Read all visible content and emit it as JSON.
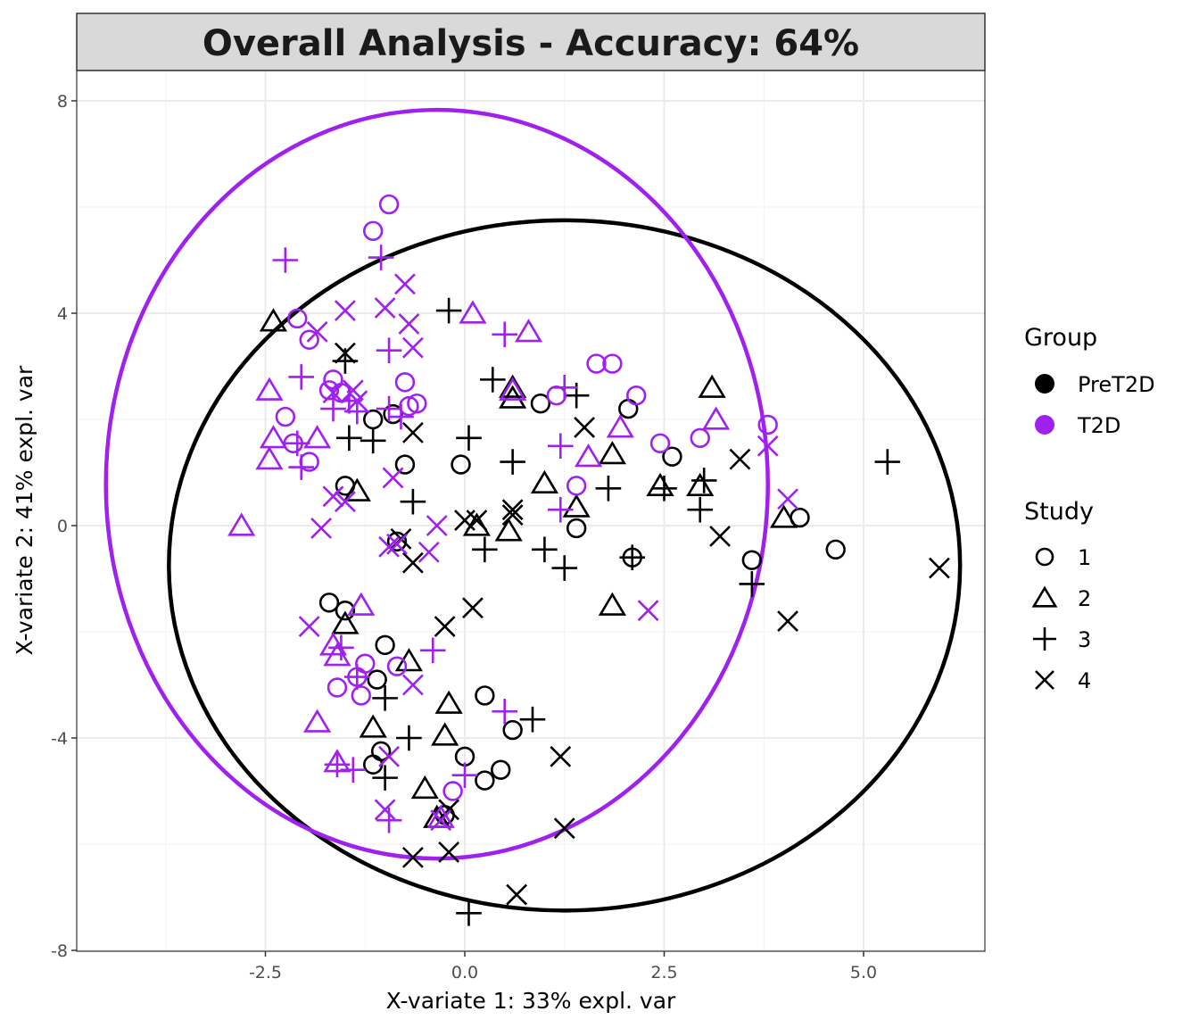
{
  "chart_data": {
    "type": "scatter",
    "title": "Overall Analysis - Accuracy: 64%",
    "xlabel": "X-variate 1: 33% expl. var",
    "ylabel": "X-variate 2: 41% expl. var",
    "xlim": [
      -4.9,
      6.5
    ],
    "ylim": [
      -8,
      8.6
    ],
    "x_ticks": [
      -2.5,
      0.0,
      2.5,
      5.0
    ],
    "x_tick_labels": [
      "-2.5",
      "0.0",
      "2.5",
      "5.0"
    ],
    "y_ticks": [
      -8,
      -4,
      0,
      4,
      8
    ],
    "y_tick_labels": [
      "-8",
      "-4",
      "0",
      "4",
      "8"
    ],
    "grid": true,
    "colors": {
      "PreT2D": "#000000",
      "T2D": "#a020f0"
    },
    "legend": {
      "group_title": "Group",
      "groups": [
        "PreT2D",
        "T2D"
      ],
      "study_title": "Study",
      "studies": [
        "1",
        "2",
        "3",
        "4"
      ]
    },
    "ellipses": [
      {
        "group": "PreT2D",
        "center": [
          1.25,
          -0.75
        ],
        "rx": 4.96,
        "ry": 6.5
      },
      {
        "group": "T2D",
        "center": [
          -0.35,
          0.78
        ],
        "rx": 4.15,
        "ry": 7.05
      }
    ],
    "series": [
      {
        "group": "PreT2D",
        "study": "1",
        "x": [
          -1.15,
          -0.9,
          -1.5,
          -0.75,
          -0.05,
          -0.85,
          -1.7,
          -1.5,
          -1.0,
          -1.1,
          0.25,
          0.6,
          0.0,
          0.45,
          0.25,
          -1.15,
          -1.05,
          -0.25,
          2.05,
          0.95,
          2.6,
          1.4,
          2.1,
          3.6,
          4.2,
          4.65
        ],
        "y": [
          2.0,
          2.1,
          0.75,
          1.15,
          1.15,
          -0.3,
          -1.45,
          -1.6,
          -2.25,
          -2.9,
          -3.2,
          -3.85,
          -4.35,
          -4.6,
          -4.8,
          -4.5,
          -4.25,
          -5.45,
          2.2,
          2.3,
          1.3,
          -0.05,
          -0.6,
          -0.65,
          0.15,
          -0.45
        ]
      },
      {
        "group": "PreT2D",
        "study": "2",
        "x": [
          -2.4,
          -1.35,
          0.6,
          0.6,
          1.85,
          2.45,
          3.1,
          2.95,
          4.0,
          -1.5,
          -0.7,
          -1.15,
          -0.2,
          -0.25,
          -0.5,
          -0.35,
          1.0,
          1.4,
          0.15,
          0.55,
          1.85
        ],
        "y": [
          3.85,
          0.65,
          2.4,
          2.6,
          1.35,
          0.75,
          2.6,
          0.75,
          0.15,
          -1.85,
          -2.55,
          -3.8,
          -3.35,
          -3.95,
          -4.95,
          -5.5,
          0.8,
          0.35,
          0.0,
          -0.1,
          -1.5
        ]
      },
      {
        "group": "PreT2D",
        "study": "3",
        "x": [
          -0.2,
          -1.5,
          -1.45,
          -1.15,
          0.05,
          0.35,
          0.6,
          1.4,
          1.8,
          2.5,
          2.95,
          3.0,
          3.6,
          5.3,
          -0.65,
          0.25,
          1.0,
          1.25,
          2.1,
          -1.0,
          -0.7,
          0.85,
          -1.0,
          0.05
        ],
        "y": [
          4.05,
          3.1,
          1.65,
          1.6,
          1.65,
          2.75,
          1.2,
          2.45,
          0.7,
          0.7,
          0.3,
          0.85,
          -1.1,
          1.2,
          0.45,
          -0.45,
          -0.45,
          -0.8,
          -0.6,
          -3.25,
          -4.0,
          -3.65,
          -4.75,
          -7.3
        ]
      },
      {
        "group": "PreT2D",
        "study": "4",
        "x": [
          -1.5,
          -0.65,
          -0.8,
          0.0,
          0.15,
          0.6,
          0.6,
          1.5,
          3.45,
          3.2,
          4.05,
          5.95,
          -0.65,
          -0.25,
          0.1,
          1.2,
          1.25,
          -0.2,
          -0.2,
          -0.65,
          0.65
        ],
        "y": [
          3.25,
          1.75,
          -0.25,
          0.1,
          0.1,
          0.3,
          0.2,
          1.85,
          1.25,
          -0.2,
          -1.8,
          -0.8,
          -0.7,
          -1.9,
          -1.55,
          -4.35,
          -5.7,
          -5.35,
          -6.15,
          -6.25,
          -6.95
        ]
      }
    ],
    "series_t2d": [
      {
        "group": "T2D",
        "study": "1",
        "x": [
          -0.95,
          -1.15,
          -2.1,
          -1.95,
          -1.65,
          -1.7,
          -1.55,
          -0.75,
          -0.7,
          -0.6,
          -2.25,
          -2.15,
          -1.95,
          1.15,
          1.65,
          1.85,
          2.15,
          2.45,
          2.95,
          3.8,
          1.4,
          -1.25,
          -0.85,
          -1.6,
          -1.35,
          -1.3,
          -0.15
        ],
        "y": [
          6.05,
          5.55,
          3.9,
          3.5,
          2.75,
          2.55,
          2.5,
          2.7,
          2.25,
          2.3,
          2.05,
          1.55,
          1.2,
          2.45,
          3.05,
          3.05,
          2.45,
          1.55,
          1.65,
          1.9,
          0.75,
          -2.6,
          -2.65,
          -3.05,
          -2.85,
          -3.2,
          -5.0
        ]
      },
      {
        "group": "T2D",
        "study": "2",
        "x": [
          0.1,
          0.8,
          -2.45,
          -2.4,
          -2.45,
          -1.85,
          0.6,
          1.95,
          1.55,
          3.15,
          -2.8,
          -1.3,
          -1.65,
          -1.6,
          -1.85,
          -1.6,
          -0.3
        ],
        "y": [
          4.0,
          3.65,
          2.55,
          1.65,
          1.25,
          1.65,
          2.55,
          1.85,
          1.3,
          2.0,
          0.0,
          -1.5,
          -2.25,
          -2.45,
          -3.7,
          -4.45,
          -5.5
        ]
      },
      {
        "group": "T2D",
        "study": "3",
        "x": [
          -2.25,
          -1.05,
          -2.05,
          -1.65,
          -1.45,
          -0.95,
          -2.1,
          -2.05,
          -1.35,
          -0.95,
          -0.8,
          0.5,
          1.25,
          1.2,
          1.2,
          -1.55,
          -1.35,
          -0.4,
          0.5,
          0.0,
          -1.6,
          -1.4,
          -0.95
        ],
        "y": [
          5.0,
          5.05,
          2.8,
          2.2,
          2.35,
          3.3,
          1.55,
          1.1,
          2.15,
          2.2,
          2.05,
          3.6,
          2.6,
          1.5,
          0.3,
          -2.3,
          -2.85,
          -2.35,
          -3.5,
          -4.7,
          -4.5,
          -4.6,
          -5.55
        ]
      },
      {
        "group": "T2D",
        "study": "4",
        "x": [
          -0.75,
          -1.0,
          -1.5,
          -1.85,
          -0.7,
          -0.65,
          -1.4,
          -1.35,
          -1.65,
          -0.9,
          -0.35,
          -1.8,
          -1.5,
          -1.65,
          -0.95,
          -0.85,
          -1.95,
          -0.45,
          -0.65,
          -0.95,
          -1.0,
          -0.3,
          2.3,
          3.8,
          4.05
        ],
        "y": [
          4.55,
          4.1,
          4.05,
          3.65,
          3.8,
          3.35,
          2.55,
          2.35,
          2.5,
          0.9,
          0.0,
          -0.05,
          0.45,
          0.55,
          -0.4,
          -0.35,
          -1.9,
          -0.5,
          -3.0,
          -4.35,
          -5.35,
          -5.55,
          -1.6,
          1.5,
          0.5
        ]
      }
    ]
  }
}
